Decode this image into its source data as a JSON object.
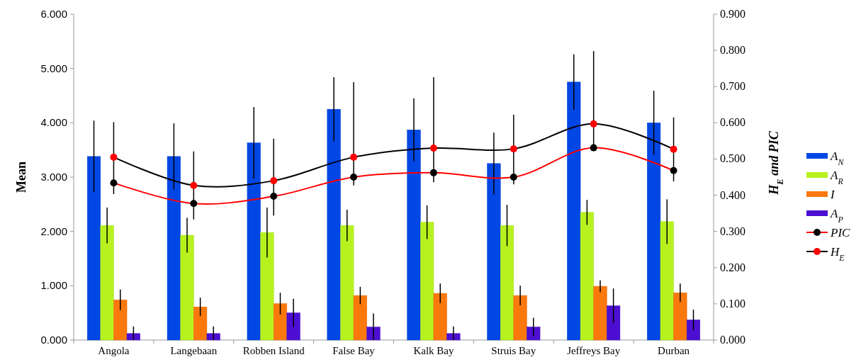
{
  "chart_data": {
    "type": "bar",
    "ylabel": "Mean",
    "y2label": "H$_{E}$ and PIC",
    "categories": [
      "Angola",
      "Langebaan",
      "Robben Island",
      "False Bay",
      "Kalk Bay",
      "Struis Bay",
      "Jeffreys Bay",
      "Durban"
    ],
    "ylim": [
      0,
      6
    ],
    "yticks": [
      {
        "value": 0,
        "label": "0.000"
      },
      {
        "value": 1,
        "label": "1.000"
      },
      {
        "value": 2,
        "label": "2.000"
      },
      {
        "value": 3,
        "label": "3.000"
      },
      {
        "value": 4,
        "label": "4.000"
      },
      {
        "value": 5,
        "label": "5.000"
      },
      {
        "value": 6,
        "label": "6.000"
      }
    ],
    "y2lim": [
      0,
      0.9
    ],
    "y2ticks": [
      {
        "value": 0,
        "label": "0.000"
      },
      {
        "value": 0.1,
        "label": "0.100"
      },
      {
        "value": 0.2,
        "label": "0.200"
      },
      {
        "value": 0.3,
        "label": "0.300"
      },
      {
        "value": 0.4,
        "label": "0.400"
      },
      {
        "value": 0.5,
        "label": "0.500"
      },
      {
        "value": 0.6,
        "label": "0.600"
      },
      {
        "value": 0.7,
        "label": "0.700"
      },
      {
        "value": 0.8,
        "label": "0.800"
      },
      {
        "value": 0.9,
        "label": "0.900"
      }
    ],
    "series": [
      {
        "name": "A$_{N}$",
        "color": "#0047e6",
        "values": [
          3.38,
          3.38,
          3.63,
          4.25,
          3.87,
          3.25,
          4.75,
          4.0
        ],
        "errors": [
          [
            2.72,
            4.04
          ],
          [
            2.77,
            3.99
          ],
          [
            2.97,
            4.29
          ],
          [
            3.66,
            4.84
          ],
          [
            3.29,
            4.45
          ],
          [
            2.68,
            3.82
          ],
          [
            4.24,
            5.26
          ],
          [
            3.41,
            4.59
          ]
        ]
      },
      {
        "name": "A$_{R}$",
        "color": "#b8f21e",
        "values": [
          2.11,
          1.93,
          1.98,
          2.11,
          2.17,
          2.11,
          2.35,
          2.18
        ],
        "errors": [
          [
            1.78,
            2.44
          ],
          [
            1.61,
            2.25
          ],
          [
            1.52,
            2.44
          ],
          [
            1.82,
            2.4
          ],
          [
            1.86,
            2.48
          ],
          [
            1.73,
            2.49
          ],
          [
            2.12,
            2.58
          ],
          [
            1.77,
            2.59
          ]
        ]
      },
      {
        "name": "I",
        "color": "#fb780d",
        "values": [
          0.74,
          0.61,
          0.67,
          0.82,
          0.86,
          0.82,
          0.99,
          0.87
        ],
        "errors": [
          [
            0.55,
            0.93
          ],
          [
            0.44,
            0.78
          ],
          [
            0.47,
            0.87
          ],
          [
            0.66,
            0.98
          ],
          [
            0.68,
            1.04
          ],
          [
            0.64,
            1.0
          ],
          [
            0.88,
            1.1
          ],
          [
            0.7,
            1.04
          ]
        ]
      },
      {
        "name": "A$_{P}$",
        "color": "#4c0fd2",
        "values": [
          0.12,
          0.12,
          0.5,
          0.24,
          0.12,
          0.24,
          0.63,
          0.37
        ],
        "errors": [
          [
            0.0,
            0.25
          ],
          [
            0.0,
            0.25
          ],
          [
            0.24,
            0.76
          ],
          [
            0.0,
            0.49
          ],
          [
            0.0,
            0.25
          ],
          [
            0.07,
            0.41
          ],
          [
            0.31,
            0.95
          ],
          [
            0.18,
            0.56
          ]
        ]
      },
      {
        "name": "PIC",
        "type": "line",
        "axis": "y2",
        "color": "#ff0000",
        "colors": [
          "#000000",
          "#000000",
          "#000000",
          "#000000",
          "#000000",
          "#000000",
          "#000000",
          "#000000"
        ],
        "values": [
          0.434,
          0.377,
          0.397,
          0.45,
          0.462,
          0.45,
          0.531,
          0.468
        ]
      },
      {
        "name": "H$_{E}$",
        "type": "line",
        "axis": "y2",
        "color": "#000000",
        "colors": [
          "#ff0000",
          "#ff0000",
          "#ff0000",
          "#ff0000",
          "#ff0000",
          "#ff0000",
          "#ff0000",
          "#ff0000"
        ],
        "values": [
          0.505,
          0.427,
          0.44,
          0.505,
          0.53,
          0.528,
          0.597,
          0.527
        ],
        "errors": [
          [
            0.403,
            0.602
          ],
          [
            0.333,
            0.521
          ],
          [
            0.344,
            0.556
          ],
          [
            0.427,
            0.712
          ],
          [
            0.436,
            0.726
          ],
          [
            0.43,
            0.622
          ],
          [
            0.53,
            0.798
          ],
          [
            0.438,
            0.615
          ]
        ]
      }
    ],
    "marker": "circle",
    "legend": "right"
  }
}
